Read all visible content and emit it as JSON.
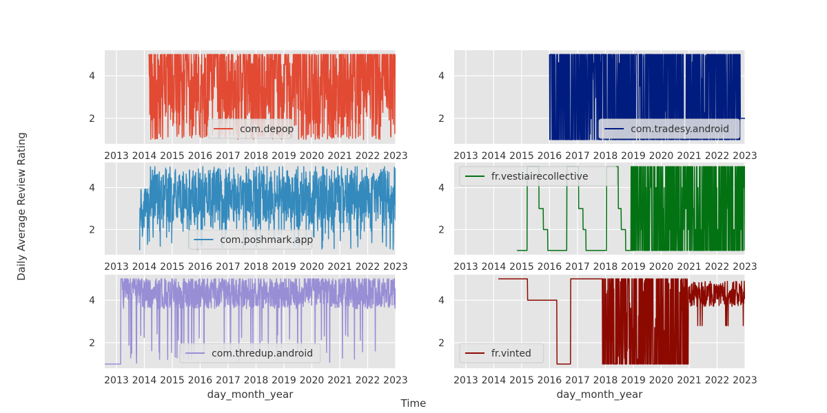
{
  "figure": {
    "ylabel": "Daily Average Review Rating",
    "xlabel": "Time"
  },
  "chart_data": [
    {
      "type": "line",
      "series": [
        {
          "name": "com.depop",
          "color": "#E24A33"
        }
      ],
      "x_start": "2014-03-01",
      "x_end": "2023-01-01",
      "xlabel": "",
      "ylabel": "",
      "xlim": [
        "2012-08-01",
        "2023-01-01"
      ],
      "ylim": [
        0.8,
        5.2
      ],
      "xticks": [
        "2013",
        "2014",
        "2015",
        "2016",
        "2017",
        "2018",
        "2019",
        "2020",
        "2021",
        "2022",
        "2023"
      ],
      "yticks": [
        2,
        4
      ],
      "value_range": [
        1,
        5
      ],
      "profile": "dense_noisy_1_to_5",
      "legend_position": "lower center",
      "grid": true
    },
    {
      "type": "line",
      "series": [
        {
          "name": "com.tradesy.android",
          "color": "#001C7F"
        }
      ],
      "x_start": "2016-01-01",
      "x_end": "2023-01-01",
      "xlabel": "",
      "ylabel": "",
      "xlim": [
        "2012-08-01",
        "2023-01-01"
      ],
      "ylim": [
        0.8,
        5.2
      ],
      "xticks": [
        "2013",
        "2014",
        "2015",
        "2016",
        "2017",
        "2018",
        "2019",
        "2020",
        "2021",
        "2022",
        "2023"
      ],
      "yticks": [
        2,
        4
      ],
      "value_range": [
        1,
        5
      ],
      "profile": "dense_binary_1_or_5_then_flat_2",
      "legend_position": "lower right",
      "grid": true
    },
    {
      "type": "line",
      "series": [
        {
          "name": "com.poshmark.app",
          "color": "#348ABD"
        }
      ],
      "x_start": "2013-11-01",
      "x_end": "2023-01-01",
      "xlabel": "",
      "ylabel": "",
      "xlim": [
        "2012-08-01",
        "2023-01-01"
      ],
      "ylim": [
        0.8,
        5.2
      ],
      "xticks": [
        "2013",
        "2014",
        "2015",
        "2016",
        "2017",
        "2018",
        "2019",
        "2020",
        "2021",
        "2022",
        "2023"
      ],
      "yticks": [
        2,
        4
      ],
      "value_range": [
        1,
        5
      ],
      "profile": "dense_noisy_around_3_5",
      "legend_position": "lower center",
      "grid": true
    },
    {
      "type": "line",
      "series": [
        {
          "name": "fr.vestiairecollective",
          "color": "#027213"
        }
      ],
      "x_start": "2014-11-01",
      "x_end": "2023-01-01",
      "xlabel": "",
      "ylabel": "",
      "xlim": [
        "2012-08-01",
        "2023-01-01"
      ],
      "ylim": [
        0.8,
        5.2
      ],
      "xticks": [
        "2013",
        "2014",
        "2015",
        "2016",
        "2017",
        "2018",
        "2019",
        "2020",
        "2021",
        "2022",
        "2023"
      ],
      "yticks": [
        2,
        4
      ],
      "value_range": [
        1,
        5
      ],
      "profile": "sparse_step_1_or_5_then_dense",
      "legend_position": "upper left",
      "grid": true
    },
    {
      "type": "line",
      "series": [
        {
          "name": "com.thredup.android",
          "color": "#988ED5"
        }
      ],
      "x_start": "2012-08-01",
      "x_end": "2023-01-01",
      "xlabel": "day_month_year",
      "ylabel": "",
      "xlim": [
        "2012-08-01",
        "2023-01-01"
      ],
      "ylim": [
        0.8,
        5.2
      ],
      "xticks": [
        "2013",
        "2014",
        "2015",
        "2016",
        "2017",
        "2018",
        "2019",
        "2020",
        "2021",
        "2022",
        "2023"
      ],
      "yticks": [
        2,
        4
      ],
      "value_range": [
        1,
        5
      ],
      "profile": "dense_noisy_around_4_5",
      "legend_position": "lower center",
      "grid": true
    },
    {
      "type": "line",
      "series": [
        {
          "name": "fr.vinted",
          "color": "#8C0900"
        }
      ],
      "x_start": "2014-03-01",
      "x_end": "2023-01-01",
      "xlabel": "day_month_year",
      "ylabel": "",
      "xlim": [
        "2012-08-01",
        "2023-01-01"
      ],
      "ylim": [
        0.8,
        5.2
      ],
      "xticks": [
        "2013",
        "2014",
        "2015",
        "2016",
        "2017",
        "2018",
        "2019",
        "2020",
        "2021",
        "2022",
        "2023"
      ],
      "yticks": [
        2,
        4
      ],
      "value_range": [
        1,
        5
      ],
      "profile": "sparse_steps_then_dense_then_around_4_5",
      "legend_position": "lower left",
      "grid": true
    }
  ]
}
